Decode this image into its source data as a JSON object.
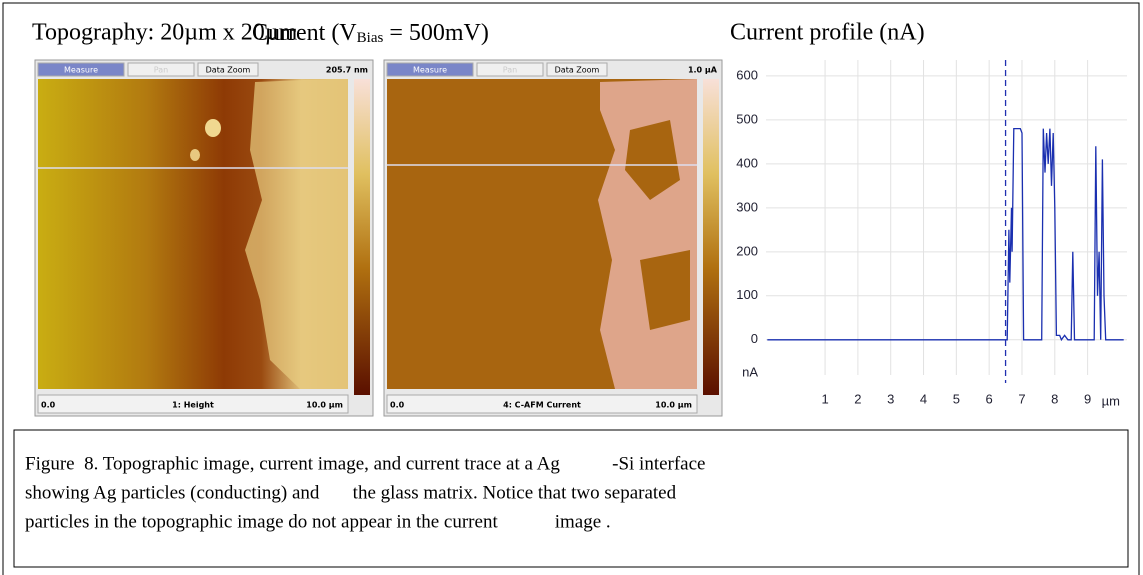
{
  "headings": {
    "topography": "Topography: 20µm x 20µm",
    "current_prefix": "Current (V",
    "current_sub": "Bias",
    "current_suffix": " = 500mV)",
    "profile": "Current profile (nA)"
  },
  "panels": [
    {
      "toolbar": [
        "Measure",
        "Pan",
        "Data Zoom"
      ],
      "scale_max": "205.7 nm",
      "bottom": [
        "0.0",
        "1: Height",
        "10.0 µm"
      ]
    },
    {
      "toolbar": [
        "Measure",
        "Pan",
        "Data Zoom"
      ],
      "scale_max": "1.0 µA",
      "bottom": [
        "0.0",
        "4: C-AFM Current",
        "10.0 µm"
      ]
    }
  ],
  "chart_data": {
    "type": "line",
    "color": "#1a2fb0",
    "grid": true,
    "x": [
      -0.76,
      6.55,
      6.6,
      6.63,
      6.68,
      6.7,
      6.75,
      6.95,
      7.0,
      7.05,
      7.6,
      7.65,
      7.7,
      7.75,
      7.8,
      7.85,
      7.9,
      7.95,
      8.0,
      8.05,
      8.15,
      8.2,
      8.3,
      8.4,
      8.5,
      8.55,
      8.6,
      9.2,
      9.25,
      9.3,
      9.35,
      9.4,
      9.45,
      9.5,
      9.55,
      10.1
    ],
    "values": [
      0,
      0,
      250,
      130,
      300,
      200,
      480,
      480,
      470,
      0,
      0,
      480,
      380,
      470,
      400,
      480,
      350,
      470,
      300,
      10,
      10,
      0,
      10,
      0,
      0,
      200,
      0,
      0,
      440,
      100,
      200,
      0,
      410,
      100,
      0,
      0
    ],
    "cursor_x": 6.5,
    "xlim": [
      -0.8,
      10.2
    ],
    "ylim": [
      -80,
      636
    ],
    "xticks": [
      1,
      2,
      3,
      4,
      5,
      6,
      7,
      8,
      9
    ],
    "yticks": [
      0,
      100,
      200,
      300,
      400,
      500,
      600
    ],
    "y_unit": "nA",
    "x_unit": "µm"
  },
  "caption": {
    "lines": [
      "Figure  8. Topographic image, current image, and current trace at a Ag           -Si interface",
      "showing Ag particles (conducting) and       the glass matrix. Notice that two separated",
      "particles in the topographic image do not appear in the current            image ."
    ]
  }
}
